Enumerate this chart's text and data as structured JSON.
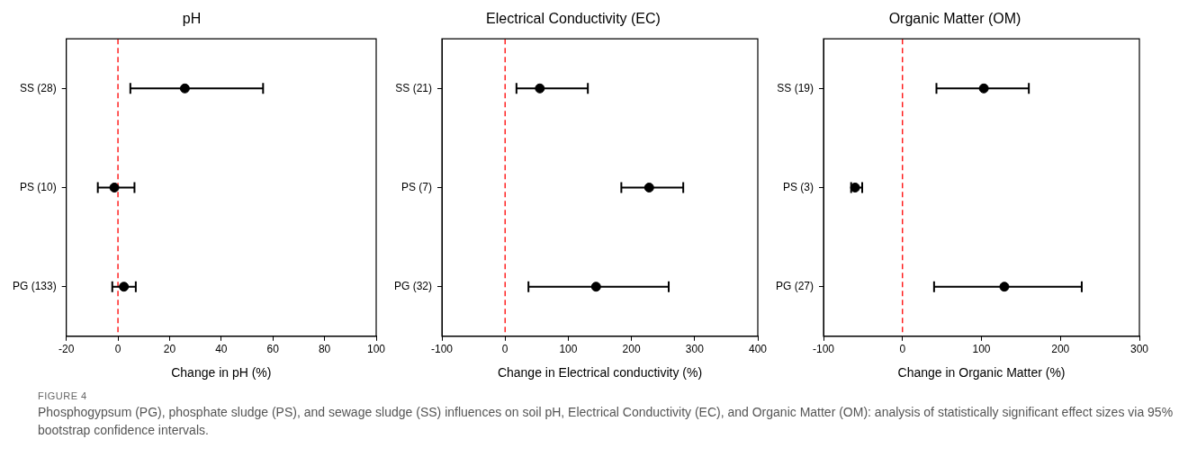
{
  "chart_data": [
    {
      "type": "scatter",
      "orientation": "horizontal",
      "title": "pH",
      "xlabel": "Change in pH (%)",
      "categories": [
        "SS (28)",
        "PS (10)",
        "PG (133)"
      ],
      "series": [
        {
          "color": "#000000",
          "values": [
            25.9,
            -1.4,
            2.3
          ],
          "errors": [
            [
              4.8,
              56.2
            ],
            [
              -7.8,
              6.4
            ],
            [
              -2.2,
              6.9
            ]
          ]
        }
      ],
      "xlim": [
        -20,
        100
      ],
      "xticks": [
        -20,
        0,
        20,
        40,
        60,
        80,
        100
      ],
      "marker": "circle",
      "grid": false,
      "legend": false,
      "ref_lines": [
        {
          "axis": "x",
          "value": 0,
          "color": "#ff0000",
          "line_style": "dashed"
        }
      ],
      "annotations": [
        "FIGURE 4",
        "Phosphogypsum (PG), phosphate sludge (PS), and sewage sludge (SS) influences on soil pH, Electrical Conductivity (EC), and Organic Matter (OM): analysis of statistically significant effect sizes via 95% bootstrap confidence intervals."
      ]
    },
    {
      "type": "scatter",
      "orientation": "horizontal",
      "title": "Electrical Conductivity (EC)",
      "xlabel": "Change in Electrical conductivity (%)",
      "categories": [
        "SS (21)",
        "PS (7)",
        "PG (32)"
      ],
      "series": [
        {
          "color": "#000000",
          "values": [
            55,
            228,
            144
          ],
          "errors": [
            [
              18,
              131
            ],
            [
              184,
              282
            ],
            [
              37,
              259
            ]
          ]
        }
      ],
      "xlim": [
        -100,
        400
      ],
      "xticks": [
        -100,
        0,
        100,
        200,
        300,
        400
      ],
      "marker": "circle",
      "grid": false,
      "legend": false,
      "ref_lines": [
        {
          "axis": "x",
          "value": 0,
          "color": "#ff0000",
          "line_style": "dashed"
        }
      ]
    },
    {
      "type": "scatter",
      "orientation": "horizontal",
      "title": "Organic Matter (OM)",
      "xlabel": "Change in Organic Matter (%)",
      "categories": [
        "SS (19)",
        "PS (3)",
        "PG (27)"
      ],
      "series": [
        {
          "color": "#000000",
          "values": [
            103,
            -60,
            129
          ],
          "errors": [
            [
              43,
              160
            ],
            [
              -65,
              -51
            ],
            [
              40,
              227
            ]
          ]
        }
      ],
      "xlim": [
        -100,
        300
      ],
      "xticks": [
        -100,
        0,
        100,
        200,
        300
      ],
      "marker": "circle",
      "grid": false,
      "legend": false,
      "ref_lines": [
        {
          "axis": "x",
          "value": 0,
          "color": "#ff0000",
          "line_style": "dashed"
        }
      ]
    }
  ]
}
